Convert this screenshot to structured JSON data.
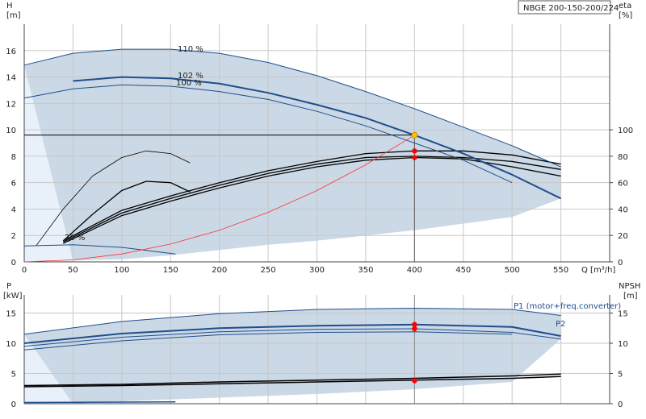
{
  "title_box": "NBGE 200-150-200/224",
  "colors": {
    "band": "#cbd8e6",
    "band_light": "#e8f1fa",
    "curve_blue": "#1f4e8c",
    "curve_black": "#000000",
    "system_curve": "#ff3333",
    "op_point": "#ff0000",
    "op_point_yellow": "#ffc000"
  },
  "chart_data": [
    {
      "type": "line",
      "name": "top",
      "left_axis": {
        "label": "H",
        "unit": "[m]",
        "ticks": [
          0,
          2,
          4,
          6,
          8,
          10,
          12,
          14,
          16
        ],
        "ylim": [
          0,
          18
        ]
      },
      "right_axis": {
        "label": "eta",
        "unit": "[%]",
        "ticks": [
          0,
          20,
          40,
          60,
          80,
          100
        ],
        "eta_range_at": [
          0,
          100
        ]
      },
      "x_axis": {
        "label": "Q [m³/h]",
        "ticks": [
          0,
          50,
          100,
          150,
          200,
          250,
          300,
          350,
          400,
          450,
          500,
          550
        ],
        "xlim": [
          0,
          600
        ]
      },
      "head_curves": [
        {
          "label": "110 %",
          "points": [
            [
              0,
              14.9
            ],
            [
              50,
              15.8
            ],
            [
              100,
              16.1
            ],
            [
              150,
              16.1
            ],
            [
              200,
              15.8
            ],
            [
              250,
              15.1
            ],
            [
              300,
              14.1
            ],
            [
              350,
              12.9
            ],
            [
              400,
              11.6
            ],
            [
              450,
              10.2
            ],
            [
              500,
              8.8
            ],
            [
              550,
              7.2
            ]
          ]
        },
        {
          "label": "102 %",
          "points": [
            [
              50,
              13.7
            ],
            [
              100,
              14.0
            ],
            [
              150,
              13.9
            ],
            [
              200,
              13.5
            ],
            [
              250,
              12.8
            ],
            [
              300,
              11.9
            ],
            [
              350,
              10.9
            ],
            [
              400,
              9.6
            ],
            [
              450,
              8.2
            ],
            [
              500,
              6.6
            ],
            [
              550,
              4.8
            ]
          ]
        },
        {
          "label": "100 %",
          "points": [
            [
              0,
              12.4
            ],
            [
              50,
              13.1
            ],
            [
              100,
              13.4
            ],
            [
              150,
              13.3
            ],
            [
              200,
              12.9
            ],
            [
              250,
              12.3
            ],
            [
              300,
              11.4
            ],
            [
              350,
              10.3
            ],
            [
              400,
              9.0
            ],
            [
              450,
              7.7
            ],
            [
              500,
              6.0
            ]
          ]
        },
        {
          "label": "20 %",
          "points": [
            [
              0,
              1.2
            ],
            [
              50,
              1.3
            ],
            [
              100,
              1.1
            ],
            [
              155,
              0.6
            ]
          ]
        }
      ],
      "band": {
        "upper": [
          [
            0,
            14.9
          ],
          [
            50,
            15.8
          ],
          [
            100,
            16.1
          ],
          [
            150,
            16.1
          ],
          [
            200,
            15.8
          ],
          [
            250,
            15.1
          ],
          [
            300,
            14.1
          ],
          [
            350,
            12.9
          ],
          [
            400,
            11.6
          ],
          [
            450,
            10.2
          ],
          [
            500,
            8.8
          ],
          [
            550,
            7.2
          ]
        ],
        "lower": [
          [
            50,
            0.1
          ],
          [
            100,
            0.2
          ],
          [
            150,
            0.5
          ],
          [
            200,
            0.9
          ],
          [
            250,
            1.3
          ],
          [
            300,
            1.6
          ],
          [
            350,
            2.0
          ],
          [
            400,
            2.4
          ],
          [
            450,
            2.9
          ],
          [
            500,
            3.4
          ],
          [
            550,
            4.8
          ]
        ]
      },
      "efficiency_curves": [
        {
          "points": [
            [
              12,
              1.2
            ],
            [
              40,
              4.0
            ],
            [
              70,
              6.5
            ],
            [
              100,
              7.9
            ],
            [
              125,
              8.4
            ],
            [
              150,
              8.2
            ],
            [
              170,
              7.5
            ]
          ]
        },
        {
          "points": [
            [
              40,
              1.6
            ],
            [
              70,
              3.6
            ],
            [
              100,
              5.4
            ],
            [
              125,
              6.1
            ],
            [
              150,
              6.0
            ],
            [
              170,
              5.3
            ]
          ]
        },
        {
          "points": [
            [
              40,
              1.6
            ],
            [
              100,
              3.9
            ],
            [
              150,
              5.0
            ],
            [
              200,
              6.0
            ],
            [
              250,
              6.9
            ],
            [
              300,
              7.6
            ],
            [
              350,
              8.2
            ],
            [
              400,
              8.4
            ],
            [
              450,
              8.4
            ],
            [
              500,
              8.1
            ],
            [
              550,
              7.4
            ]
          ]
        },
        {
          "points": [
            [
              40,
              1.5
            ],
            [
              100,
              3.7
            ],
            [
              150,
              4.8
            ],
            [
              200,
              5.8
            ],
            [
              250,
              6.7
            ],
            [
              300,
              7.4
            ],
            [
              350,
              7.9
            ],
            [
              400,
              8.0
            ],
            [
              450,
              7.9
            ],
            [
              500,
              7.6
            ],
            [
              550,
              7.0
            ]
          ]
        },
        {
          "points": [
            [
              40,
              1.4
            ],
            [
              100,
              3.5
            ],
            [
              150,
              4.6
            ],
            [
              200,
              5.6
            ],
            [
              250,
              6.5
            ],
            [
              300,
              7.2
            ],
            [
              350,
              7.7
            ],
            [
              400,
              7.9
            ],
            [
              450,
              7.8
            ],
            [
              500,
              7.2
            ],
            [
              550,
              6.5
            ]
          ]
        }
      ],
      "system_curve": [
        [
          0,
          0
        ],
        [
          50,
          0.15
        ],
        [
          100,
          0.6
        ],
        [
          150,
          1.35
        ],
        [
          200,
          2.4
        ],
        [
          250,
          3.75
        ],
        [
          300,
          5.4
        ],
        [
          350,
          7.35
        ],
        [
          400,
          9.6
        ]
      ],
      "duty_point": {
        "q": 400,
        "h": 9.6
      },
      "eta_points": [
        {
          "q": 400,
          "h": 8.4
        },
        {
          "q": 400,
          "h": 7.9
        }
      ]
    },
    {
      "type": "line",
      "name": "bottom",
      "left_axis": {
        "label": "P",
        "unit": "[kW]",
        "ticks": [
          0,
          5,
          10,
          15
        ],
        "ylim": [
          0,
          18
        ]
      },
      "right_axis": {
        "label": "NPSH",
        "unit": "[m]",
        "ticks": [
          0,
          5,
          10,
          15
        ]
      },
      "x_axis": {
        "xlim": [
          0,
          600
        ]
      },
      "power_curves": [
        {
          "label": "P1 (motor+freq.converter)",
          "points": [
            [
              0,
              11.5
            ],
            [
              100,
              13.6
            ],
            [
              200,
              14.9
            ],
            [
              300,
              15.6
            ],
            [
              400,
              15.8
            ],
            [
              500,
              15.6
            ],
            [
              550,
              14.6
            ]
          ]
        },
        {
          "label": "P2",
          "points": [
            [
              0,
              10.0
            ],
            [
              100,
              11.6
            ],
            [
              200,
              12.5
            ],
            [
              300,
              12.9
            ],
            [
              400,
              13.1
            ],
            [
              500,
              12.7
            ],
            [
              550,
              11.2
            ]
          ]
        },
        {
          "points": [
            [
              0,
              9.5
            ],
            [
              100,
              11.0
            ],
            [
              200,
              11.9
            ],
            [
              300,
              12.3
            ],
            [
              400,
              12.4
            ],
            [
              500,
              11.8
            ],
            [
              550,
              10.7
            ]
          ]
        },
        {
          "points": [
            [
              0,
              8.9
            ],
            [
              100,
              10.4
            ],
            [
              200,
              11.4
            ],
            [
              300,
              11.8
            ],
            [
              400,
              11.9
            ],
            [
              500,
              11.5
            ]
          ]
        },
        {
          "points": [
            [
              0,
              0.2
            ],
            [
              155,
              0.3
            ]
          ]
        }
      ],
      "band": {
        "upper": [
          [
            0,
            11.5
          ],
          [
            100,
            13.6
          ],
          [
            200,
            14.9
          ],
          [
            300,
            15.6
          ],
          [
            400,
            15.8
          ],
          [
            500,
            15.6
          ],
          [
            550,
            14.6
          ]
        ],
        "lower": [
          [
            50,
            0
          ],
          [
            100,
            0.4
          ],
          [
            200,
            1.0
          ],
          [
            300,
            1.6
          ],
          [
            400,
            2.4
          ],
          [
            500,
            3.6
          ],
          [
            550,
            10.7
          ]
        ]
      },
      "npsh_curves": [
        {
          "points": [
            [
              0,
              3.0
            ],
            [
              100,
              3.2
            ],
            [
              200,
              3.6
            ],
            [
              300,
              3.9
            ],
            [
              400,
              4.2
            ],
            [
              500,
              4.6
            ],
            [
              550,
              4.9
            ]
          ]
        },
        {
          "points": [
            [
              0,
              2.8
            ],
            [
              100,
              3.0
            ],
            [
              200,
              3.3
            ],
            [
              300,
              3.6
            ],
            [
              400,
              3.9
            ],
            [
              500,
              4.2
            ],
            [
              550,
              4.5
            ]
          ]
        }
      ],
      "points": [
        {
          "q": 400,
          "p": 13.1
        },
        {
          "q": 400,
          "p": 12.4
        },
        {
          "q": 400,
          "p": 3.8
        }
      ]
    }
  ]
}
